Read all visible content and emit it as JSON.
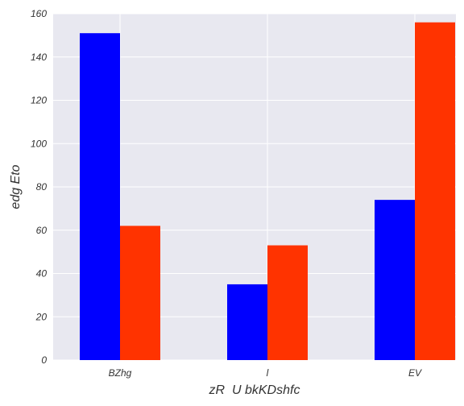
{
  "chart_data": {
    "type": "bar",
    "categories": [
      "BZhg",
      "l",
      "EV"
    ],
    "series": [
      {
        "values": [
          151,
          35,
          74
        ],
        "color": "#0000ff"
      },
      {
        "values": [
          62,
          53,
          156
        ],
        "color": "#ff3300"
      }
    ],
    "xlabel": "zR  U bkKDshfc",
    "ylabel": "edg Eto",
    "ylim": [
      0,
      160
    ],
    "yticks": [
      0,
      20,
      40,
      60,
      80,
      100,
      120,
      140,
      160
    ],
    "grid": true,
    "background": "#e8e8f0",
    "grid_color": "#ffffff"
  }
}
